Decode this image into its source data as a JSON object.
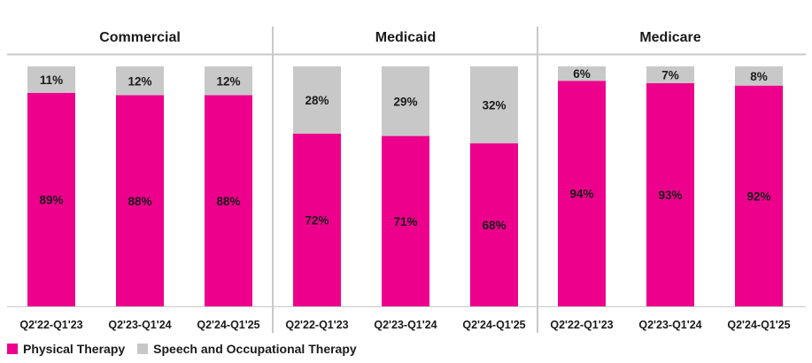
{
  "chart_data": {
    "type": "bar",
    "stacked": true,
    "normalized": true,
    "panels": [
      {
        "title": "Commercial",
        "categories": [
          "Q2'22-Q1'23",
          "Q2'23-Q1'24",
          "Q2'24-Q1'25"
        ],
        "series": [
          {
            "name": "Physical Therapy",
            "values": [
              89,
              88,
              88
            ],
            "labels": [
              "89%",
              "88%",
              "88%"
            ]
          },
          {
            "name": "Speech and Occupational Therapy",
            "values": [
              11,
              12,
              12
            ],
            "labels": [
              "11%",
              "12%",
              "12%"
            ]
          }
        ]
      },
      {
        "title": "Medicaid",
        "categories": [
          "Q2'22-Q1'23",
          "Q2'23-Q1'24",
          "Q2'24-Q1'25"
        ],
        "series": [
          {
            "name": "Physical Therapy",
            "values": [
              72,
              71,
              68
            ],
            "labels": [
              "72%",
              "71%",
              "68%"
            ]
          },
          {
            "name": "Speech and Occupational Therapy",
            "values": [
              28,
              29,
              32
            ],
            "labels": [
              "28%",
              "29%",
              "32%"
            ]
          }
        ]
      },
      {
        "title": "Medicare",
        "categories": [
          "Q2'22-Q1'23",
          "Q2'23-Q1'24",
          "Q2'24-Q1'25"
        ],
        "series": [
          {
            "name": "Physical Therapy",
            "values": [
              94,
              93,
              92
            ],
            "labels": [
              "94%",
              "93%",
              "92%"
            ]
          },
          {
            "name": "Speech and Occupational Therapy",
            "values": [
              6,
              7,
              8
            ],
            "labels": [
              "6%",
              "7%",
              "8%"
            ]
          }
        ]
      }
    ],
    "legend": {
      "position": "bottom-left",
      "items": [
        "Physical Therapy",
        "Speech and Occupational Therapy"
      ]
    },
    "colors": {
      "Physical Therapy": "#ec008c",
      "Speech and Occupational Therapy": "#c8c8c8",
      "divider": "#c9c9c9"
    },
    "grid": false
  }
}
